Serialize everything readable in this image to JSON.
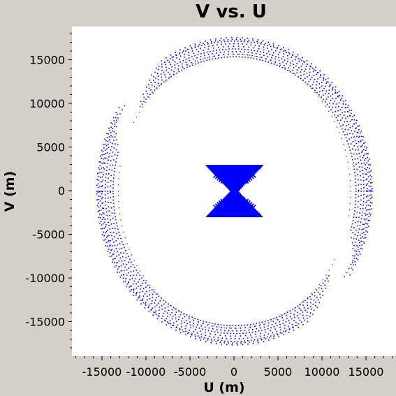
{
  "chart_data": {
    "type": "scatter",
    "title": "V vs. U",
    "xlabel": "U (m)",
    "ylabel": "V (m)",
    "xlim": [
      -18400,
      18000
    ],
    "ylim": [
      -18800,
      18800
    ],
    "x_ticks": [
      -15000,
      -10000,
      -5000,
      0,
      5000,
      10000,
      15000
    ],
    "x_tick_labels": [
      "-15000",
      "-10000",
      "-5000",
      "0",
      "5000",
      "10000",
      "15000"
    ],
    "y_ticks": [
      15000,
      10000,
      5000,
      0,
      -5000,
      -10000,
      -15000
    ],
    "y_tick_labels": [
      "15000",
      "10000",
      "5000",
      "0",
      "-5000",
      "-10000",
      "-15000"
    ],
    "grid": false,
    "point_color": "#0000ff",
    "series": [
      {
        "tracks_outer": [
          {
            "r_u": 15500,
            "r_v": 17200,
            "theta_start": 125,
            "theta_end": 328
          },
          {
            "r_u": 15300,
            "r_v": 16900,
            "theta_start": 128,
            "theta_end": 330
          },
          {
            "r_u": 15000,
            "r_v": 16600,
            "theta_start": 130,
            "theta_end": 333
          },
          {
            "r_u": 14700,
            "r_v": 16300,
            "theta_start": 133,
            "theta_end": 335
          },
          {
            "r_u": 14400,
            "r_v": 16000,
            "theta_start": 136,
            "theta_end": 338
          },
          {
            "r_u": 14100,
            "r_v": 15700,
            "theta_start": 139,
            "theta_end": 340
          },
          {
            "r_u": 13800,
            "r_v": 15400,
            "theta_start": 141,
            "theta_end": 342
          },
          {
            "r_u": 15100,
            "r_v": 17400,
            "theta_start": 118,
            "theta_end": 325
          },
          {
            "r_u": 15650,
            "r_v": 17600,
            "theta_start": 122,
            "theta_end": 326
          }
        ],
        "inner_arc": {
          "r_u": 13200,
          "r_v": 15700,
          "theta_start": 150,
          "theta_end": 348
        },
        "center": {
          "ellipses_u": [
            3000,
            2700,
            2400,
            2100,
            1800
          ],
          "ellipses_v": [
            2600,
            2400,
            2200,
            2000,
            1800
          ]
        }
      }
    ]
  }
}
